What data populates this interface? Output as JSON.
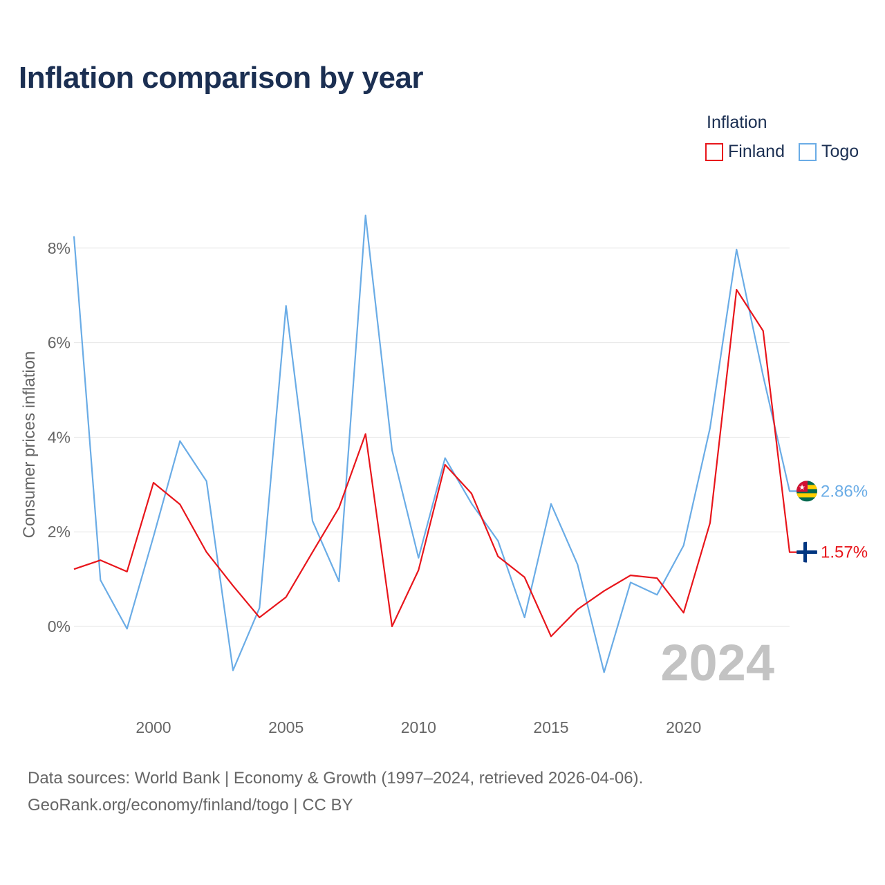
{
  "chart_data": {
    "type": "line",
    "title": "Inflation comparison by year",
    "legend_title": "Inflation",
    "ylabel": "Consumer prices inflation",
    "xlabel": "",
    "year_watermark": "2024",
    "xlim": [
      1997,
      2024
    ],
    "ylim": [
      -1.5,
      9
    ],
    "y_ticks": [
      0,
      2,
      4,
      6,
      8
    ],
    "y_tick_labels": [
      "0%",
      "2%",
      "4%",
      "6%",
      "8%"
    ],
    "x_ticks": [
      2000,
      2005,
      2010,
      2015,
      2020
    ],
    "x_tick_labels": [
      "2000",
      "2005",
      "2010",
      "2015",
      "2020"
    ],
    "x": [
      1997,
      1998,
      1999,
      2000,
      2001,
      2002,
      2003,
      2004,
      2005,
      2006,
      2007,
      2008,
      2009,
      2010,
      2011,
      2012,
      2013,
      2014,
      2015,
      2016,
      2017,
      2018,
      2019,
      2020,
      2021,
      2022,
      2023,
      2024
    ],
    "series": [
      {
        "name": "Finland",
        "color": "#e8151b",
        "end_label": "1.57%",
        "flag_icon": "finland-flag-icon",
        "values": [
          1.21,
          1.4,
          1.16,
          3.04,
          2.58,
          1.57,
          0.86,
          0.19,
          0.62,
          1.57,
          2.51,
          4.07,
          0.0,
          1.19,
          3.42,
          2.81,
          1.48,
          1.04,
          -0.21,
          0.36,
          0.75,
          1.08,
          1.02,
          0.29,
          2.19,
          7.12,
          6.25,
          1.57
        ]
      },
      {
        "name": "Togo",
        "color": "#6aace6",
        "end_label": "2.86%",
        "flag_icon": "togo-flag-icon",
        "values": [
          8.25,
          0.98,
          -0.05,
          1.9,
          3.92,
          3.07,
          -0.93,
          0.39,
          6.78,
          2.23,
          0.95,
          8.69,
          3.73,
          1.45,
          3.56,
          2.6,
          1.81,
          0.19,
          2.59,
          1.31,
          -0.97,
          0.93,
          0.67,
          1.71,
          4.2,
          7.97,
          5.3,
          2.86
        ]
      }
    ]
  },
  "footer": {
    "line1": "Data sources: World Bank | Economy & Growth (1997–2024, retrieved 2026-04-06).",
    "line2": "GeoRank.org/economy/finland/togo | CC BY"
  }
}
